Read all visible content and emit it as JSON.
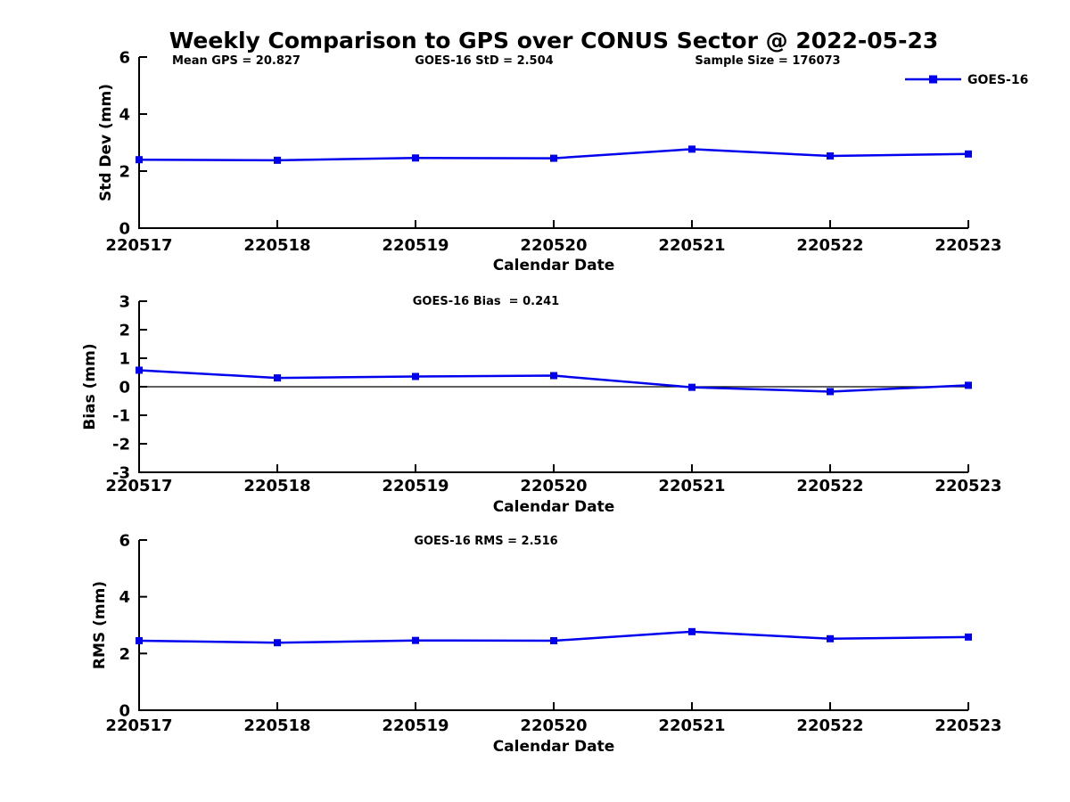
{
  "title": "Weekly Comparison to GPS over CONUS Sector @ 2022-05-23",
  "legend": {
    "label": "GOES-16",
    "position": "top-right",
    "color": "#0000ee"
  },
  "colors": {
    "line": "#0000ee",
    "axis": "#000000",
    "text": "#000000",
    "background": "#ffffff"
  },
  "chart_data": [
    {
      "id": "std-dev",
      "type": "line",
      "title": "",
      "annotations": [
        {
          "text": "Mean GPS = 20.827",
          "cx": 265
        },
        {
          "text": "GOES-16 StD = 2.504",
          "cx": 543
        },
        {
          "text": "Sample Size = 176073",
          "cx": 861
        }
      ],
      "xlabel": "Calendar Date",
      "ylabel": "Std Dev (mm)",
      "ylim": [
        0,
        6
      ],
      "yticks": [
        0,
        2,
        4,
        6
      ],
      "grid": false,
      "zero_line": false,
      "categories": [
        "220517",
        "220518",
        "220519",
        "220520",
        "220521",
        "220522",
        "220523"
      ],
      "series": [
        {
          "name": "GOES-16",
          "color": "#0000ee",
          "marker": "square",
          "values": [
            2.4,
            2.38,
            2.46,
            2.45,
            2.77,
            2.53,
            2.6
          ]
        }
      ]
    },
    {
      "id": "bias",
      "type": "line",
      "title": "",
      "annotations": [
        {
          "text": "GOES-16 Bias  = 0.241",
          "cx": 545
        }
      ],
      "xlabel": "Calendar Date",
      "ylabel": "Bias (mm)",
      "ylim": [
        -3,
        3
      ],
      "yticks": [
        -3,
        -2,
        -1,
        0,
        1,
        2,
        3
      ],
      "grid": false,
      "zero_line": true,
      "categories": [
        "220517",
        "220518",
        "220519",
        "220520",
        "220521",
        "220522",
        "220523"
      ],
      "series": [
        {
          "name": "GOES-16",
          "color": "#0000ee",
          "marker": "square",
          "values": [
            0.58,
            0.31,
            0.36,
            0.39,
            -0.02,
            -0.17,
            0.05
          ]
        }
      ]
    },
    {
      "id": "rms",
      "type": "line",
      "title": "",
      "annotations": [
        {
          "text": "GOES-16 RMS = 2.516",
          "cx": 545
        }
      ],
      "xlabel": "Calendar Date",
      "ylabel": "RMS (mm)",
      "ylim": [
        0,
        6
      ],
      "yticks": [
        0,
        2,
        4,
        6
      ],
      "grid": false,
      "zero_line": false,
      "categories": [
        "220517",
        "220518",
        "220519",
        "220520",
        "220521",
        "220522",
        "220523"
      ],
      "series": [
        {
          "name": "GOES-16",
          "color": "#0000ee",
          "marker": "square",
          "values": [
            2.45,
            2.38,
            2.46,
            2.45,
            2.77,
            2.52,
            2.58
          ]
        }
      ]
    }
  ]
}
